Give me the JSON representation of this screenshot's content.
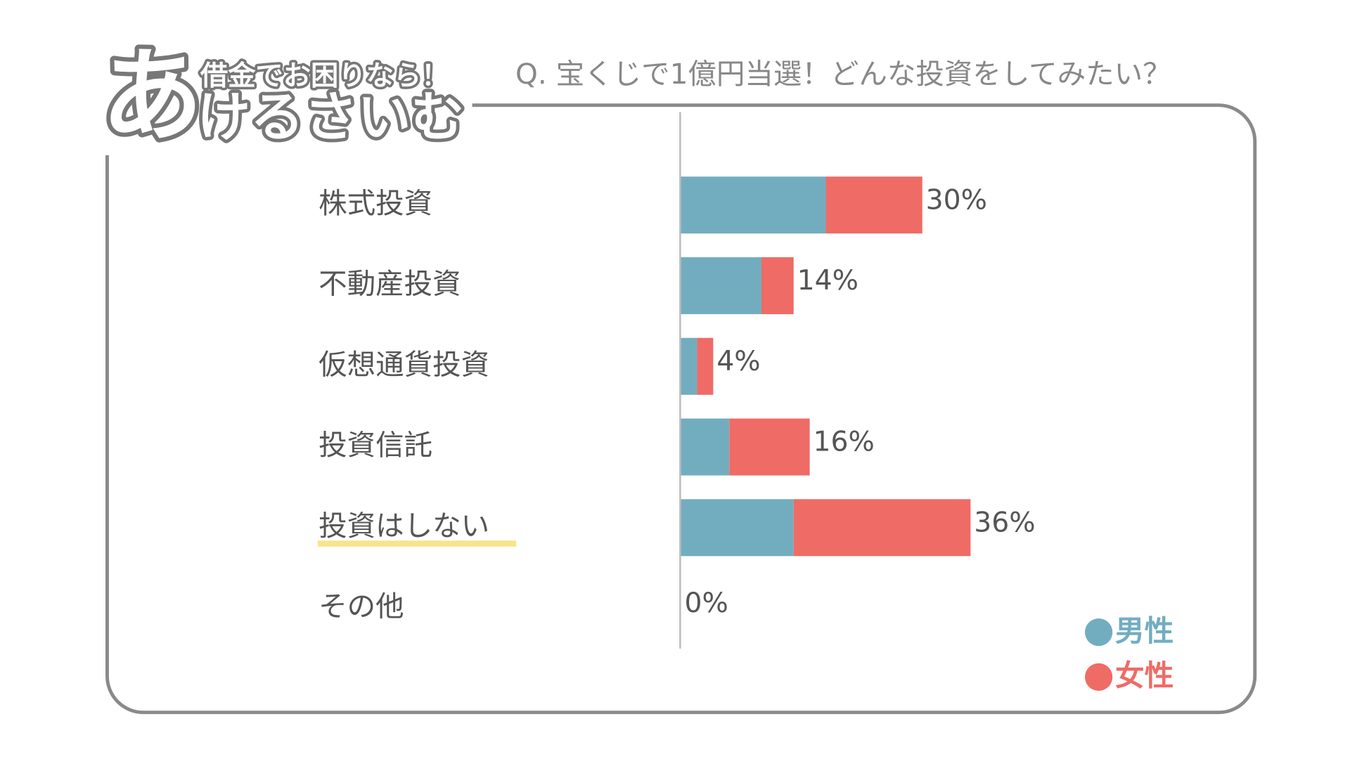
{
  "logo": {
    "tagline": "借金でお困りなら！",
    "name_first": "あ",
    "name_rest": "けるさいむ"
  },
  "chart_data": {
    "type": "stacked-barh",
    "title": "Q. 宝くじで1億円当選！どんな投資をしてみたい？",
    "categories": [
      "株式投資",
      "不動産投資",
      "仮想通貨投資",
      "投資信託",
      "投資はしない",
      "その他"
    ],
    "series": [
      {
        "name": "男性",
        "color": "#72adbf",
        "values": [
          18,
          10,
          2,
          6,
          14,
          0
        ]
      },
      {
        "name": "女性",
        "color": "#ef6b66",
        "values": [
          12,
          4,
          2,
          10,
          22,
          0
        ]
      }
    ],
    "totals": [
      30,
      14,
      4,
      16,
      36,
      0
    ],
    "value_labels": [
      "30%",
      "14%",
      "4%",
      "16%",
      "36%",
      "0%"
    ],
    "xlim": [
      0,
      50
    ],
    "highlight_category": 4
  }
}
